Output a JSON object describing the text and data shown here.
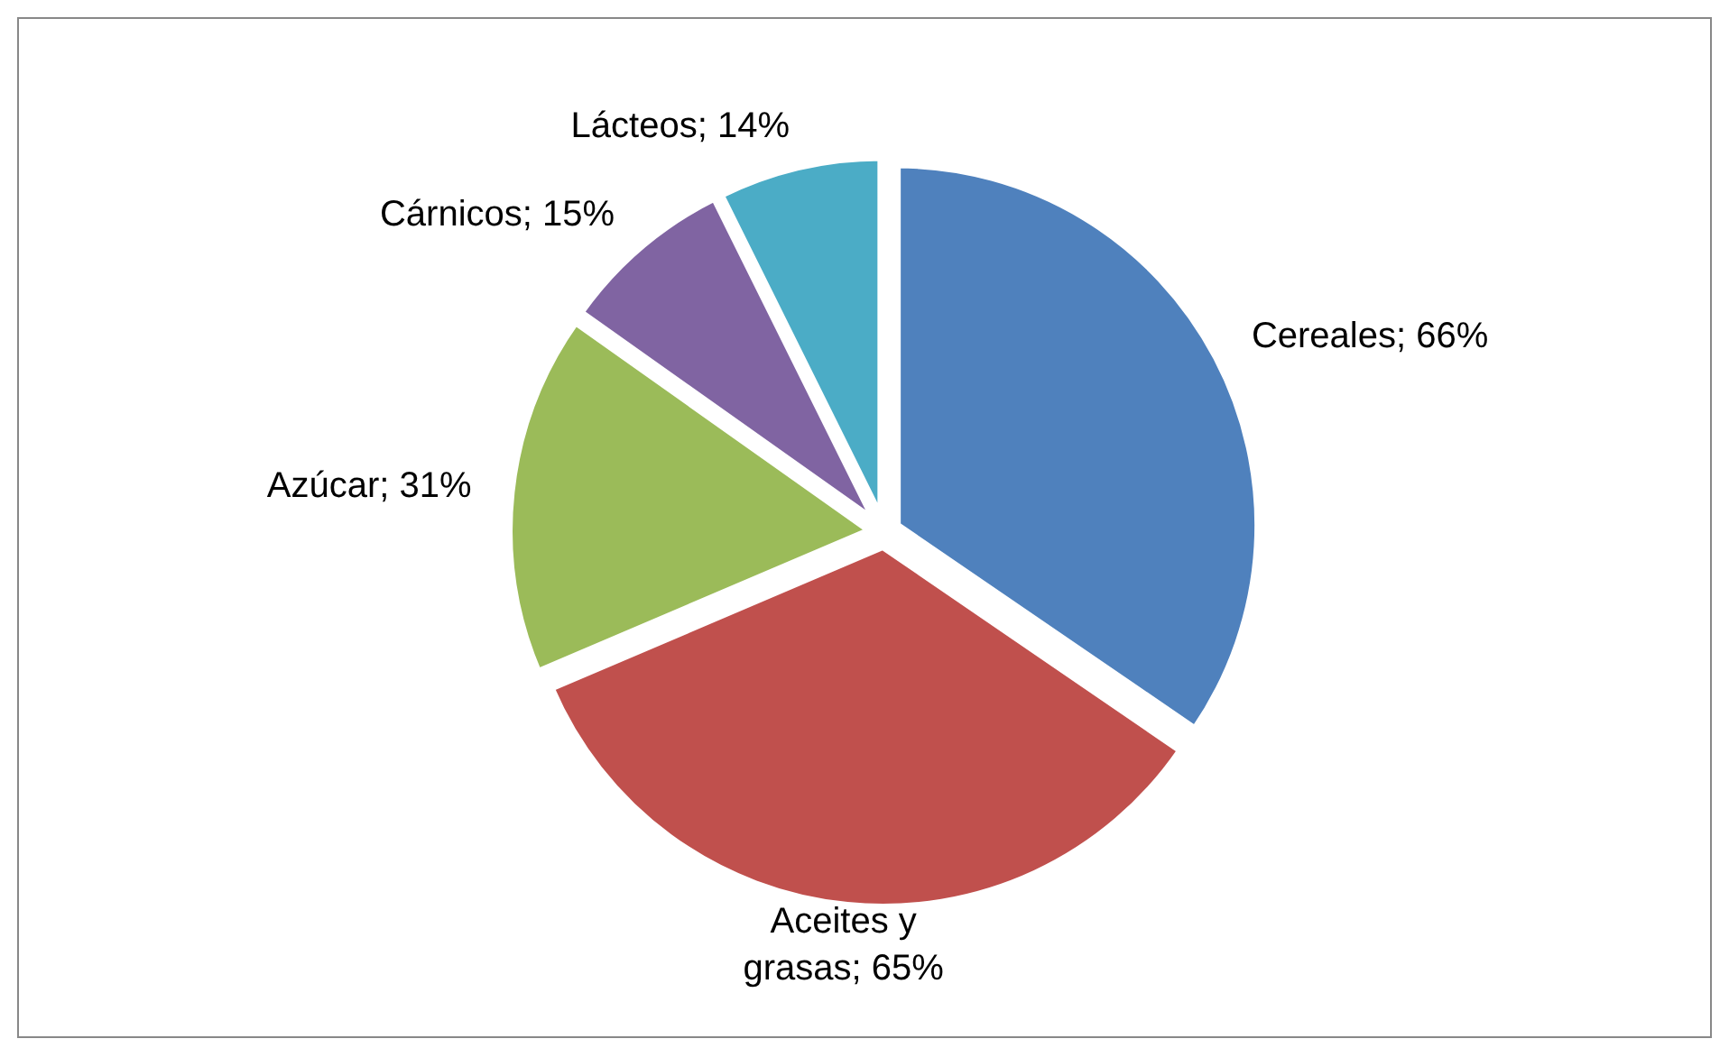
{
  "chart_data": {
    "type": "pie",
    "categories": [
      "Cereales",
      "Aceites y grasas",
      "Azúcar",
      "Cárnicos",
      "Lácteos"
    ],
    "values": [
      66,
      65,
      31,
      15,
      14
    ],
    "value_labels": [
      "; 66%",
      "; 65%",
      "; 31%",
      "; 15%",
      "; 14%"
    ],
    "colors": [
      "#4f81bd",
      "#c0504d",
      "#9bbb59",
      "#8064a2",
      "#4bacc6"
    ]
  }
}
